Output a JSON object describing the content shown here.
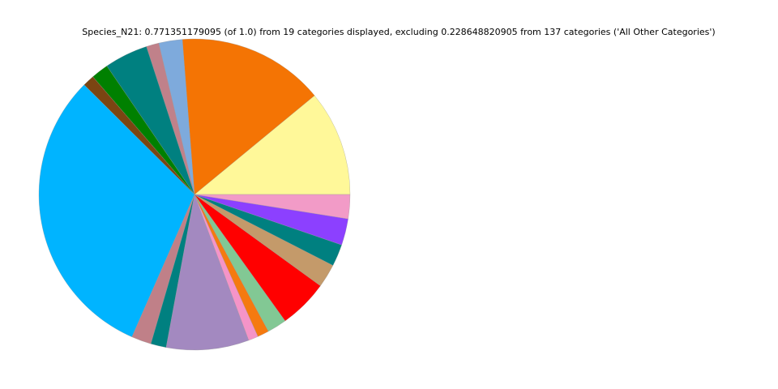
{
  "chart_data": {
    "type": "pie",
    "title": "Species_N21: 0.771351179095 (of 1.0) from 19 categories displayed, excluding 0.228648820905 from 137 categories ('All Other Categories')",
    "start_angle": 0,
    "direction": "counterclockwise",
    "values": [
      0.0846,
      0.1178,
      0.0189,
      0.0101,
      0.0349,
      0.0139,
      0.0094,
      0.238,
      0.0159,
      0.0124,
      0.0662,
      0.0079,
      0.0092,
      0.0156,
      0.0394,
      0.0189,
      0.0176,
      0.0212,
      0.0193
    ],
    "colors": [
      "#fff899",
      "#f47404",
      "#7eaadc",
      "#c0818a",
      "#008080",
      "#008000",
      "#7b4512",
      "#00b4ff",
      "#c08088",
      "#008080",
      "#a389c0",
      "#f594c8",
      "#f57a10",
      "#82c894",
      "#ff0000",
      "#c49a6a",
      "#008080",
      "#8c40ff",
      "#f29bc7"
    ]
  }
}
